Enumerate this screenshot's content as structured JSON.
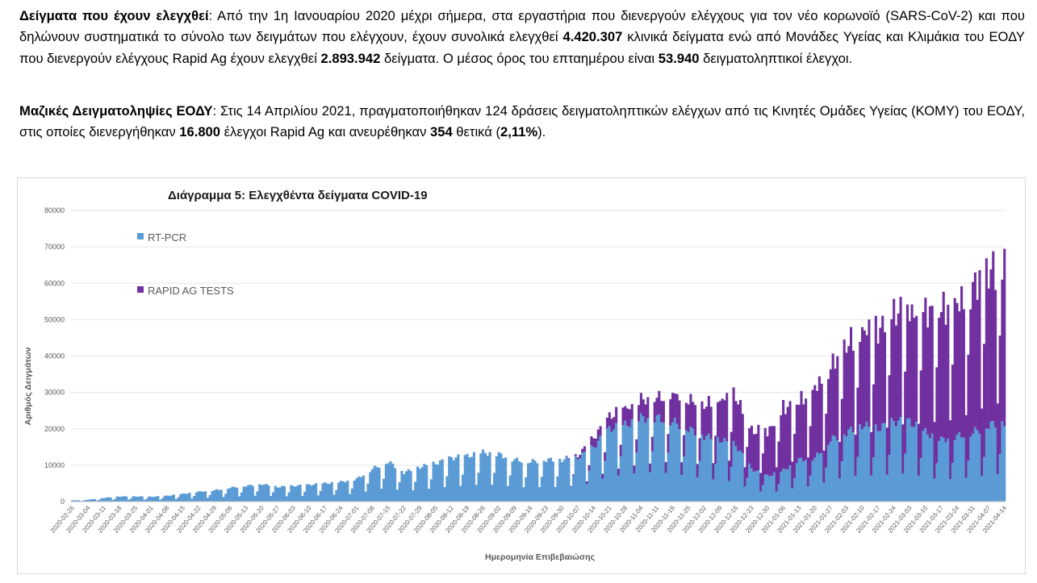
{
  "text": {
    "p1": [
      {
        "b": true,
        "t": "Δείγματα που έχουν ελεγχθεί"
      },
      {
        "b": false,
        "t": ":  Από την 1η Ιανουαρίου 2020 μέχρι σήμερα, στα εργαστήρια που διενεργούν ελέγχους για τον νέο κορωνοϊό (SARS-CoV-2) και που δηλώνουν συστηματικά το σύνολο των δειγμάτων που ελέγχουν, έχουν συνολικά ελεγχθεί "
      },
      {
        "b": true,
        "t": "4.420.307"
      },
      {
        "b": false,
        "t": " κλινικά δείγματα ενώ από Μονάδες Υγείας και Κλιμάκια του ΕΟΔΥ που διενεργούν ελέγχους Rapid Ag έχουν ελεγχθεί "
      },
      {
        "b": true,
        "t": "2.893.942"
      },
      {
        "b": false,
        "t": " δείγματα.  Ο μέσος όρος του επταημέρου είναι "
      },
      {
        "b": true,
        "t": "53.940"
      },
      {
        "b": false,
        "t": " δειγματοληπτικοί έλεγχοι."
      }
    ],
    "p2": [
      {
        "b": true,
        "t": "Μαζικές Δειγματοληψίες ΕΟΔΥ"
      },
      {
        "b": false,
        "t": ": Στις 14 Απριλίου 2021, πραγματοποιήθηκαν 124 δράσεις δειγματοληπτικών ελέγχων από τις Κινητές Ομάδες Υγείας (ΚΟΜΥ) του ΕΟΔΥ, στις οποίες διενεργήθηκαν "
      },
      {
        "b": true,
        "t": "16.800"
      },
      {
        "b": false,
        "t": " έλεγχοι Rapid Ag και ανευρέθηκαν "
      },
      {
        "b": true,
        "t": "354"
      },
      {
        "b": false,
        "t": " θετικά ("
      },
      {
        "b": true,
        "t": "2,11%"
      },
      {
        "b": false,
        "t": ")."
      }
    ]
  },
  "chart_data": {
    "type": "bar",
    "stacked": true,
    "title": "Διάγραμμα 5: Ελεγχθέντα δείγματα COVID-19",
    "xlabel": "Ημερομηνία Επιβεβαιώσης",
    "ylabel": "Αριθμός Δειγμάτων",
    "ylim": [
      0,
      80000
    ],
    "yticks": [
      0,
      10000,
      20000,
      30000,
      40000,
      50000,
      60000,
      70000,
      80000
    ],
    "grid": true,
    "legend_position": "top-left",
    "x_start": "2020-02-26",
    "x_end": "2021-04-14",
    "xtick_labels": [
      "2020-02-26",
      "2020-03-04",
      "2020-03-11",
      "2020-03-18",
      "2020-03-25",
      "2020-04-01",
      "2020-04-08",
      "2020-04-15",
      "2020-04-22",
      "2020-04-29",
      "2020-05-06",
      "2020-05-13",
      "2020-05-20",
      "2020-05-27",
      "2020-06-03",
      "2020-06-10",
      "2020-06-17",
      "2020-06-24",
      "2020-07-01",
      "2020-07-08",
      "2020-07-15",
      "2020-07-22",
      "2020-07-29",
      "2020-08-05",
      "2020-08-12",
      "2020-08-19",
      "2020-08-26",
      "2020-09-02",
      "2020-09-09",
      "2020-09-16",
      "2020-09-23",
      "2020-09-30",
      "2020-10-07",
      "2020-10-14",
      "2020-10-21",
      "2020-10-28",
      "2020-11-04",
      "2020-11-11",
      "2020-11-18",
      "2020-11-25",
      "2020-12-02",
      "2020-12-09",
      "2020-12-16",
      "2020-12-23",
      "2020-12-30",
      "2021-01-06",
      "2021-01-13",
      "2021-01-20",
      "2021-01-27",
      "2021-02-03",
      "2021-02-10",
      "2021-02-17",
      "2021-02-24",
      "2021-03-03",
      "2021-03-10",
      "2021-03-17",
      "2021-03-24",
      "2021-03-31",
      "2021-04-07",
      "2021-04-14"
    ],
    "series": [
      {
        "name": "RT-PCR",
        "color": "#5b9bd5",
        "weekly_level": [
          300,
          500,
          1000,
          1400,
          1400,
          1300,
          1600,
          2100,
          2700,
          3100,
          3800,
          4300,
          4800,
          4000,
          4300,
          4600,
          5000,
          5400,
          6200,
          9000,
          11000,
          8000,
          9500,
          10500,
          12000,
          12500,
          13500,
          13000,
          11500,
          11000,
          11500,
          11500,
          12000,
          15000,
          20000,
          21000,
          23000,
          23000,
          22000,
          20000,
          18000,
          17000,
          15500,
          9000,
          7000,
          8500,
          11500,
          12000,
          17000,
          19000,
          21000,
          20000,
          22000,
          22000,
          19000,
          17000,
          18000,
          19000,
          21000,
          22000
        ]
      },
      {
        "name": "RAPID AG TESTS",
        "color": "#7030a0",
        "weekly_level": [
          0,
          0,
          0,
          0,
          0,
          0,
          0,
          0,
          0,
          0,
          0,
          0,
          0,
          0,
          0,
          0,
          0,
          0,
          0,
          0,
          0,
          0,
          0,
          0,
          0,
          0,
          0,
          0,
          0,
          0,
          0,
          0,
          600,
          2500,
          3500,
          4500,
          5000,
          5500,
          7500,
          8000,
          8500,
          11000,
          13500,
          10500,
          12000,
          17000,
          16000,
          19000,
          20000,
          24000,
          26000,
          27000,
          30000,
          30000,
          33000,
          36000,
          36000,
          40000,
          42000,
          44000
        ]
      }
    ]
  }
}
